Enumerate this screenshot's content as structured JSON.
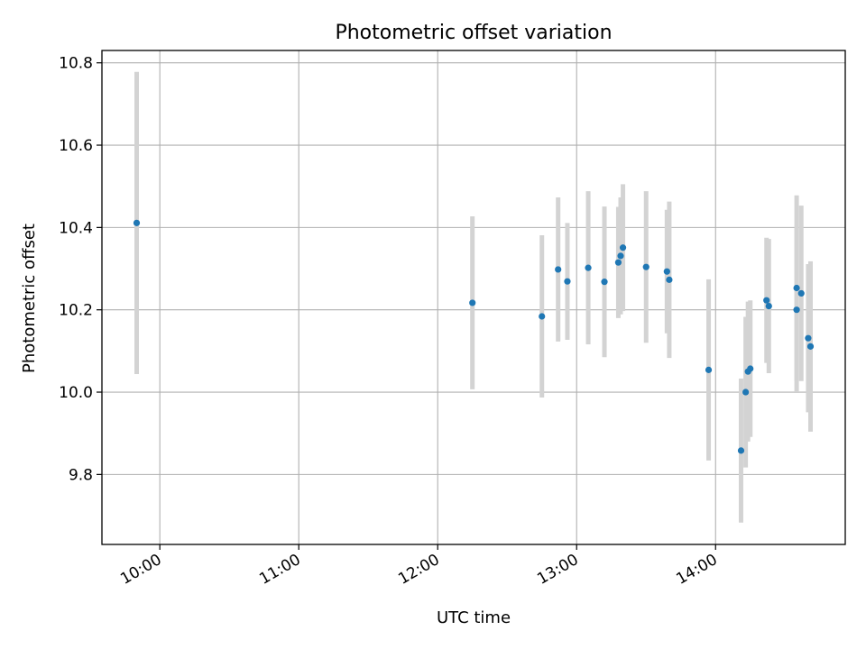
{
  "chart_data": {
    "type": "scatter",
    "title": "Photometric offset variation",
    "xlabel": "UTC time",
    "ylabel": "Photometric offset",
    "x_axis_type": "time",
    "xlim": [
      "09:35",
      "14:56"
    ],
    "ylim": [
      9.63,
      10.83
    ],
    "xticks": [
      "10:00",
      "11:00",
      "12:00",
      "13:00",
      "14:00"
    ],
    "yticks": [
      9.8,
      10.0,
      10.2,
      10.4,
      10.6,
      10.8
    ],
    "grid": true,
    "legend": "none",
    "marker_color": "#1f77b4",
    "errorbar_color": "#d3d3d3",
    "points": [
      {
        "x": "09:50",
        "y": 10.411,
        "err": 0.367
      },
      {
        "x": "12:15",
        "y": 10.217,
        "err": 0.21
      },
      {
        "x": "12:45",
        "y": 10.184,
        "err": 0.197
      },
      {
        "x": "12:52",
        "y": 10.298,
        "err": 0.175
      },
      {
        "x": "12:56",
        "y": 10.269,
        "err": 0.142
      },
      {
        "x": "13:05",
        "y": 10.302,
        "err": 0.186
      },
      {
        "x": "13:12",
        "y": 10.268,
        "err": 0.183
      },
      {
        "x": "13:18",
        "y": 10.315,
        "err": 0.135
      },
      {
        "x": "13:19",
        "y": 10.331,
        "err": 0.142
      },
      {
        "x": "13:20",
        "y": 10.351,
        "err": 0.154
      },
      {
        "x": "13:30",
        "y": 10.304,
        "err": 0.184
      },
      {
        "x": "13:39",
        "y": 10.293,
        "err": 0.15
      },
      {
        "x": "13:40",
        "y": 10.273,
        "err": 0.19
      },
      {
        "x": "13:57",
        "y": 10.054,
        "err": 0.22
      },
      {
        "x": "14:11",
        "y": 9.858,
        "err": 0.175
      },
      {
        "x": "14:13",
        "y": 10.0,
        "err": 0.183
      },
      {
        "x": "14:14",
        "y": 10.05,
        "err": 0.17
      },
      {
        "x": "14:15",
        "y": 10.057,
        "err": 0.166
      },
      {
        "x": "14:22",
        "y": 10.223,
        "err": 0.152
      },
      {
        "x": "14:23",
        "y": 10.209,
        "err": 0.163
      },
      {
        "x": "14:35",
        "y": 10.253,
        "err": 0.225
      },
      {
        "x": "14:35",
        "y": 10.2,
        "err": 0.2
      },
      {
        "x": "14:37",
        "y": 10.24,
        "err": 0.213
      },
      {
        "x": "14:40",
        "y": 10.131,
        "err": 0.18
      },
      {
        "x": "14:41",
        "y": 10.111,
        "err": 0.207
      }
    ]
  }
}
